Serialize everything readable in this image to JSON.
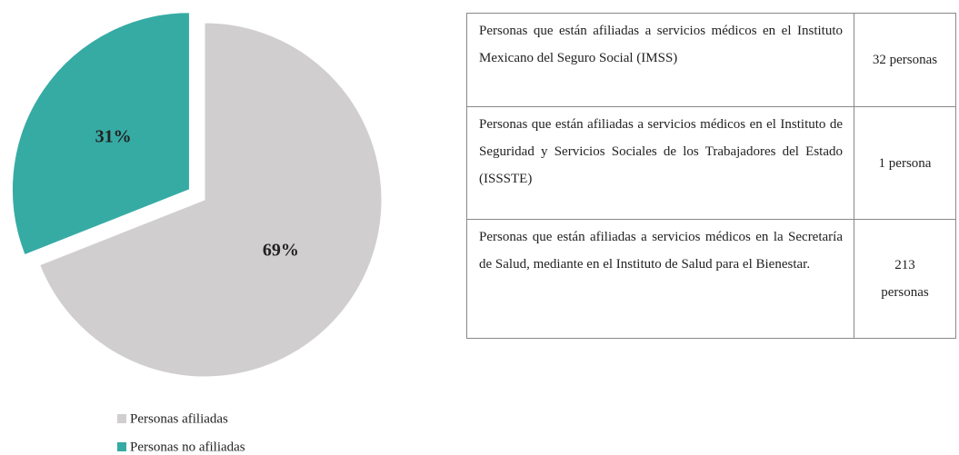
{
  "chart_data": {
    "type": "pie",
    "categories": [
      "Personas afiliadas",
      "Personas no afiliadas"
    ],
    "values": [
      69,
      31
    ],
    "value_labels": [
      "69%",
      "31%"
    ],
    "colors": [
      "#d0cece",
      "#36aba4"
    ],
    "legend": "bottom"
  },
  "table": {
    "rows": [
      [
        "Personas que están afiliadas a servicios médicos en el Instituto Mexicano del Seguro Social (IMSS)",
        "32 personas"
      ],
      [
        "Personas que están afiliadas a servicios médicos en el Instituto de Seguridad y Servicios Sociales de los Trabajadores del Estado (ISSSTE)",
        "1 persona"
      ],
      [
        "Personas que están afiliadas a servicios médicos en la Secretaría de Salud, mediante en el Instituto de Salud para el Bienestar.",
        "213 personas"
      ]
    ]
  }
}
